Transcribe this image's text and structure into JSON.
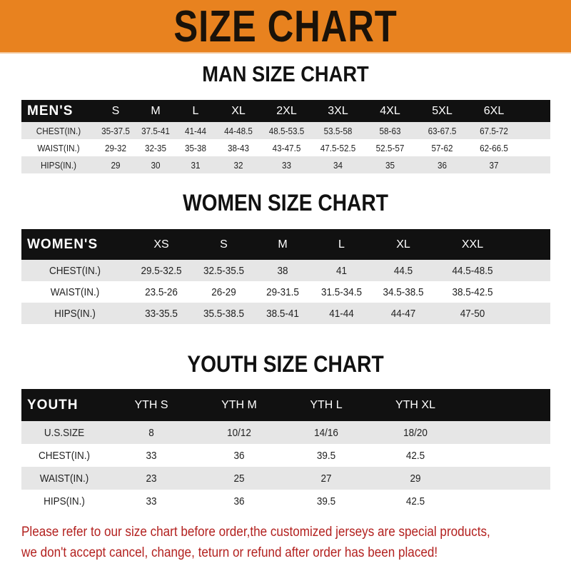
{
  "banner": {
    "title": "SIZE CHART",
    "color": "#e8821f"
  },
  "men": {
    "title": "MAN SIZE CHART",
    "header": [
      "MEN'S",
      "S",
      "M",
      "L",
      "XL",
      "2XL",
      "3XL",
      "4XL",
      "5XL",
      "6XL"
    ],
    "rows": [
      [
        "CHEST(IN.)",
        "35-37.5",
        "37.5-41",
        "41-44",
        "44-48.5",
        "48.5-53.5",
        "53.5-58",
        "58-63",
        "63-67.5",
        "67.5-72"
      ],
      [
        "WAIST(IN.)",
        "29-32",
        "32-35",
        "35-38",
        "38-43",
        "43-47.5",
        "47.5-52.5",
        "52.5-57",
        "57-62",
        "62-66.5"
      ],
      [
        "HIPS(IN.)",
        "29",
        "30",
        "31",
        "32",
        "33",
        "34",
        "35",
        "36",
        "37"
      ]
    ]
  },
  "women": {
    "title": "WOMEN SIZE CHART",
    "header": [
      "WOMEN'S",
      "XS",
      "S",
      "M",
      "L",
      "XL",
      "XXL"
    ],
    "rows": [
      [
        "CHEST(IN.)",
        "29.5-32.5",
        "32.5-35.5",
        "38",
        "41",
        "44.5",
        "44.5-48.5"
      ],
      [
        "WAIST(IN.)",
        "23.5-26",
        "26-29",
        "29-31.5",
        "31.5-34.5",
        "34.5-38.5",
        "38.5-42.5"
      ],
      [
        "HIPS(IN.)",
        "33-35.5",
        "35.5-38.5",
        "38.5-41",
        "41-44",
        "44-47",
        "47-50"
      ]
    ]
  },
  "youth": {
    "title": "YOUTH SIZE CHART",
    "header": [
      "YOUTH",
      "YTH S",
      "YTH M",
      "YTH L",
      "YTH XL"
    ],
    "rows": [
      [
        "U.S.SIZE",
        "8",
        "10/12",
        "14/16",
        "18/20"
      ],
      [
        "CHEST(IN.)",
        "33",
        "36",
        "39.5",
        "42.5"
      ],
      [
        "WAIST(IN.)",
        "23",
        "25",
        "27",
        "29"
      ],
      [
        "HIPS(IN.)",
        "33",
        "36",
        "39.5",
        "42.5"
      ]
    ]
  },
  "notice": {
    "line1": "Please refer to our size chart before order,the customized jerseys are special products,",
    "line2": "we don't accept cancel, change, teturn or refund after order has been placed!",
    "color": "#b3211f"
  }
}
